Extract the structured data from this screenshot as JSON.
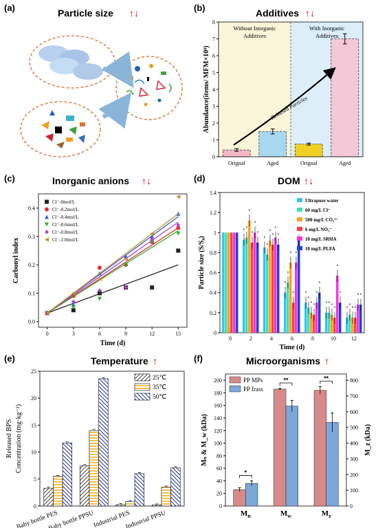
{
  "panels": {
    "a": {
      "label": "(a)",
      "title": "Particle size",
      "arrows": "↑↓"
    },
    "b": {
      "label": "(b)",
      "title": "Additives",
      "arrows": "↑↓"
    },
    "c": {
      "label": "(c)",
      "title": "Inorganic anions",
      "arrows": "↑↓"
    },
    "d": {
      "label": "(d)",
      "title": "DOM",
      "arrows": "↑↓"
    },
    "e": {
      "label": "(e)",
      "title": "Temperature",
      "arrows": "↑"
    },
    "f": {
      "label": "(f)",
      "title": "Microorganisms",
      "arrows": "↑"
    }
  },
  "colors": {
    "arrow_red": "#e00000"
  },
  "chart_data": [
    {
      "id": "b",
      "type": "bar",
      "title": "Additives",
      "ylabel": "Abundance(items/ MFM×10⁸)",
      "ylim": [
        0,
        8
      ],
      "yticks": [
        0,
        1,
        2,
        3,
        4,
        5,
        6,
        7,
        8
      ],
      "categories": [
        "Orignal",
        "Aged",
        "Orignal",
        "Aged"
      ],
      "values": [
        0.4,
        1.5,
        0.75,
        7.0
      ],
      "errors": [
        0.08,
        0.15,
        0.06,
        0.3
      ],
      "bar_colors": [
        "#f4b8c8",
        "#a8d8f0",
        "#f0d020",
        "#f5c8d8"
      ],
      "regions": [
        {
          "label_line1": "Without Inorganic",
          "label_line2": "Additives",
          "color": "#faf5d8"
        },
        {
          "label_line1": "With Inorganic",
          "label_line2": "Additives",
          "color": "#dceef8"
        }
      ],
      "annotation": "Released Particles"
    },
    {
      "id": "c",
      "type": "scatter",
      "title": "Inorganic anions",
      "xlabel": "Time (d)",
      "ylabel": "Carbonyl index",
      "xlim": [
        -1,
        16
      ],
      "ylim": [
        -0.02,
        0.45
      ],
      "xticks": [
        0,
        3,
        6,
        9,
        12,
        15
      ],
      "yticks": [
        0.0,
        0.1,
        0.2,
        0.3,
        0.4
      ],
      "series": [
        {
          "name": "Cl⁻-0mol/L",
          "marker": "square",
          "color": "#222222",
          "x": [
            0,
            3,
            6,
            9,
            12,
            15
          ],
          "y": [
            0.03,
            0.04,
            0.1,
            0.12,
            0.12,
            0.25
          ],
          "fit": [
            0.03,
            0.2
          ]
        },
        {
          "name": "Cl⁻-0.2mol/L",
          "marker": "circle",
          "color": "#e03030",
          "x": [
            0,
            3,
            6,
            9,
            12,
            15
          ],
          "y": [
            0.03,
            0.09,
            0.19,
            0.2,
            0.28,
            0.33
          ],
          "fit": [
            0.03,
            0.33
          ]
        },
        {
          "name": "Cl⁻-0.4mol/L",
          "marker": "triangle",
          "color": "#3060e0",
          "x": [
            0,
            3,
            6,
            9,
            12,
            15
          ],
          "y": [
            0.03,
            0.06,
            0.17,
            0.23,
            0.3,
            0.38
          ],
          "fit": [
            0.03,
            0.37
          ]
        },
        {
          "name": "Cl⁻-0.6mol/L",
          "marker": "triangle-down",
          "color": "#30b030",
          "x": [
            0,
            3,
            6,
            9,
            12,
            15
          ],
          "y": [
            0.03,
            0.05,
            0.08,
            0.2,
            0.28,
            0.31
          ],
          "fit": [
            0.03,
            0.32
          ]
        },
        {
          "name": "Cl⁻-0.8mol/L",
          "marker": "diamond",
          "color": "#b040d0",
          "x": [
            0,
            3,
            6,
            9,
            12,
            15
          ],
          "y": [
            0.03,
            0.07,
            0.11,
            0.12,
            0.29,
            0.34
          ],
          "fit": [
            0.03,
            0.35
          ]
        },
        {
          "name": "Cl⁻-1.0mol/L",
          "marker": "triangle-left",
          "color": "#c89020",
          "x": [
            0,
            3,
            6,
            9,
            12,
            15
          ],
          "y": [
            0.03,
            0.1,
            0.15,
            0.22,
            0.31,
            0.44
          ],
          "fit": [
            0.03,
            0.38
          ]
        }
      ]
    },
    {
      "id": "d",
      "type": "bar",
      "title": "DOM",
      "xlabel": "Time (d)",
      "ylabel": "Particle size (S/S₀)",
      "ylim": [
        0,
        1.4
      ],
      "yticks": [
        0,
        0.2,
        0.4,
        0.6,
        0.8,
        1,
        1.2,
        1.4
      ],
      "categories": [
        "0",
        "2",
        "4",
        "6",
        "8",
        "10",
        "12"
      ],
      "series": [
        {
          "name": "Ultrapure water",
          "color": "#30c8f0",
          "values": [
            1,
            0.93,
            0.85,
            0.4,
            0.3,
            0.2,
            0.15
          ]
        },
        {
          "name": "60 mg/L Cl⁻",
          "color": "#40e0b0",
          "values": [
            1,
            0.95,
            0.78,
            0.5,
            0.25,
            0.2,
            0.18
          ]
        },
        {
          "name": "500 mg/L CO₃²⁻",
          "color": "#ffa020",
          "values": [
            1,
            1.12,
            0.92,
            0.7,
            0.2,
            0.18,
            0.15
          ]
        },
        {
          "name": "6 mg/L NO₃⁻",
          "color": "#ff4040",
          "values": [
            1,
            0.9,
            0.88,
            0.3,
            0.18,
            0.15,
            0.15
          ]
        },
        {
          "name": "10 mg/L SRHA",
          "color": "#ff30e0",
          "values": [
            1,
            1.0,
            0.95,
            0.7,
            0.3,
            0.57,
            0.28
          ]
        },
        {
          "name": "10 mg/L PLFA",
          "color": "#2040e0",
          "values": [
            1,
            0.9,
            0.88,
            0.92,
            0.4,
            0.3,
            0.28
          ]
        }
      ]
    },
    {
      "id": "e",
      "type": "bar",
      "title": "Temperature",
      "ylabel_line1": "Released BPS",
      "ylabel_line2": "Concentration (mg·kg⁻¹)",
      "ylim": [
        0,
        25
      ],
      "yticks": [
        0,
        5,
        10,
        15,
        20,
        25
      ],
      "categories": [
        "Baby bottle PES",
        "Baby bottle PPSU",
        "Industrial PES",
        "Industrial PPSU"
      ],
      "series": [
        {
          "name": "25℃",
          "color": "#555555",
          "values": [
            3.3,
            7.5,
            0.25,
            0.2
          ]
        },
        {
          "name": "35℃",
          "color": "#f0b020",
          "values": [
            5.5,
            14.0,
            0.8,
            3.5
          ]
        },
        {
          "name": "50℃",
          "color": "#2030a0",
          "values": [
            11.7,
            23.6,
            6.0,
            7.1
          ]
        }
      ]
    },
    {
      "id": "f",
      "type": "bar",
      "title": "Microorganisms",
      "ylabel_left": "Mₙ & M_w (kDa)",
      "ylabel_right": "M_z (kDa)",
      "ylim_left": [
        0,
        210
      ],
      "yticks_left": [
        0,
        20,
        40,
        60,
        80,
        100,
        120,
        140,
        160,
        180,
        200
      ],
      "ylim_right": [
        0,
        840
      ],
      "yticks_right": [
        0,
        100,
        200,
        300,
        400,
        500,
        600,
        700,
        800
      ],
      "categories": [
        "Mn",
        "Mw",
        "Mz"
      ],
      "series": [
        {
          "name": "PP MPs",
          "color": "#d88a8a",
          "values": [
            26,
            186,
            184
          ],
          "errors": [
            3,
            1,
            6
          ]
        },
        {
          "name": "PP frass",
          "color": "#7aa8d8",
          "values": [
            36,
            159,
            133
          ],
          "errors": [
            4,
            9,
            15
          ]
        }
      ],
      "significance": [
        "*",
        "**",
        "**"
      ]
    }
  ]
}
